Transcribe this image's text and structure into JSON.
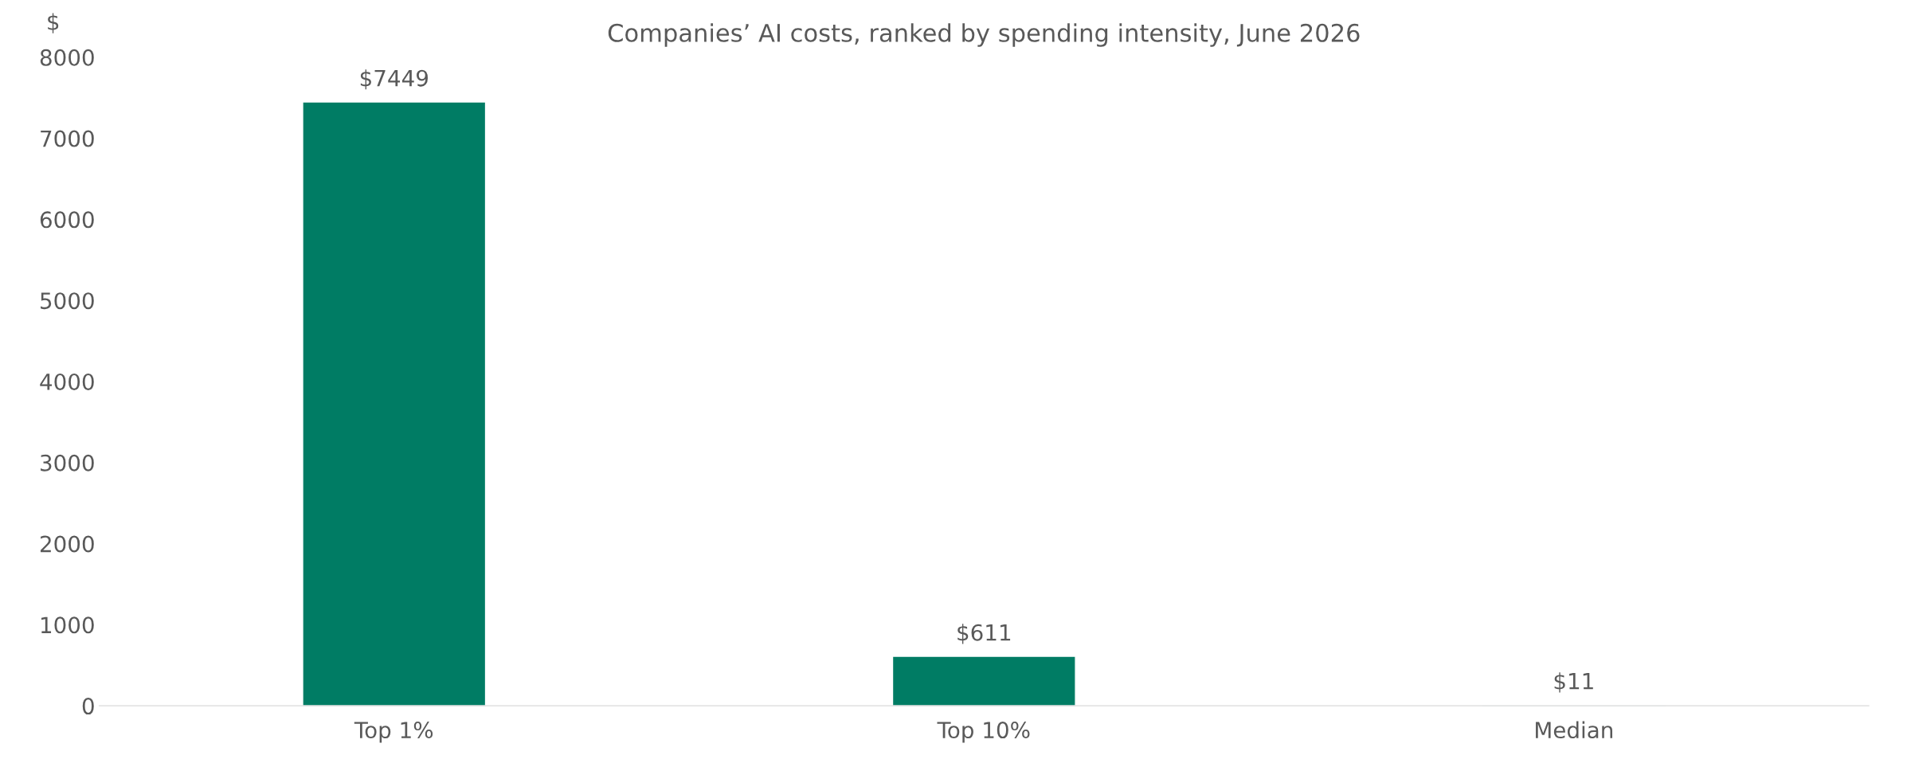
{
  "chart_data": {
    "type": "bar",
    "title": "Companies’ AI costs, ranked by spending intensity, June 2026",
    "ylabel": "$",
    "categories": [
      "Top 1%",
      "Top 10%",
      "Median"
    ],
    "values": [
      7449,
      611,
      11
    ],
    "value_labels": [
      "$7449",
      "$611",
      "$11"
    ],
    "color": "#007c64",
    "ylim": [
      0,
      8000
    ],
    "yticks": [
      0,
      1000,
      2000,
      3000,
      4000,
      5000,
      6000,
      7000,
      8000
    ],
    "grid": false,
    "legend": false
  }
}
